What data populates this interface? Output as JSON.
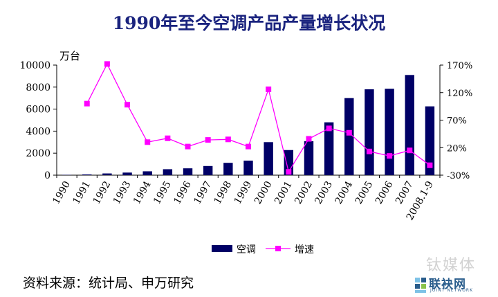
{
  "chart_data": {
    "type": "bar+line",
    "title": "1990年至今空调产品产量增长状况",
    "categories": [
      "1990",
      "1991",
      "1992",
      "1993",
      "1994",
      "1995",
      "1996",
      "1997",
      "1998",
      "1999",
      "2000",
      "2001",
      "2002",
      "2003",
      "2004",
      "2005",
      "2006",
      "2007",
      "2008.1-9"
    ],
    "series": [
      {
        "name": "空调",
        "type": "bar",
        "axis": "left",
        "color": "#000066",
        "values": [
          25,
          65,
          155,
          235,
          350,
          540,
          620,
          830,
          1120,
          1320,
          3000,
          2280,
          3090,
          4800,
          7000,
          7800,
          7850,
          9100,
          6250
        ]
      },
      {
        "name": "增速",
        "type": "line",
        "axis": "right",
        "color": "#ff00ff",
        "values": [
          null,
          100,
          172,
          98,
          30,
          37,
          22,
          34,
          35,
          22,
          126,
          -24,
          36,
          55,
          47,
          13,
          5,
          15,
          -12
        ]
      }
    ],
    "left_axis": {
      "unit_label": "万台",
      "min": 0,
      "max": 10000,
      "ticks": [
        0,
        2000,
        4000,
        6000,
        8000,
        10000
      ]
    },
    "right_axis": {
      "min": -30,
      "max": 170,
      "ticks": [
        -30,
        20,
        70,
        120,
        170
      ],
      "tick_labels": [
        "-30%",
        "20%",
        "70%",
        "120%",
        "170%"
      ]
    },
    "legend": {
      "position": "bottom",
      "items": [
        "空调",
        "增速"
      ]
    },
    "grid": false
  },
  "source_note": "资料来源：统计局、申万研究",
  "watermark": "钛媒体",
  "brand": {
    "name": "联袂网",
    "subtitle": "JOINT NETWORK"
  }
}
